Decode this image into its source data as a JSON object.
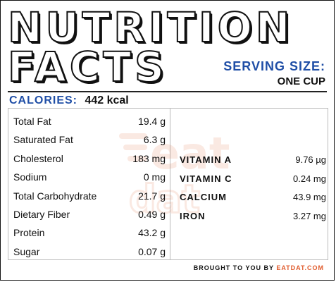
{
  "header": {
    "title_line1": "NUTRITION",
    "title_line2": "FACTS",
    "serving_label": "SERVING SIZE:",
    "serving_value": "ONE CUP"
  },
  "calories": {
    "label": "CALORIES:",
    "value": "442 kcal"
  },
  "nutrients": [
    {
      "name": "Total Fat",
      "value": "19.4 g"
    },
    {
      "name": "Saturated Fat",
      "value": "6.3 g"
    },
    {
      "name": "Cholesterol",
      "value": "183 mg"
    },
    {
      "name": "Sodium",
      "value": "0 mg"
    },
    {
      "name": "Total Carbohydrate",
      "value": "21.7 g"
    },
    {
      "name": "Dietary Fiber",
      "value": "0.49 g"
    },
    {
      "name": "Protein",
      "value": "43.2 g"
    },
    {
      "name": "Sugar",
      "value": "0.07 g"
    }
  ],
  "vitamins": [
    {
      "name": "VITAMIN A",
      "value": "9.76 µg"
    },
    {
      "name": "VITAMIN C",
      "value": "0.24 mg"
    },
    {
      "name": "CALCIUM",
      "value": "43.9 mg"
    },
    {
      "name": "IRON",
      "value": "3.27 mg"
    }
  ],
  "footer": {
    "prefix": "BROUGHT TO YOU BY",
    "brand": "EATDAT.COM"
  },
  "watermark": {
    "text_line1": "eat",
    "text_line2": "dat",
    "color": "#e05a2b"
  },
  "colors": {
    "accent_blue": "#1f4ea6",
    "brand_orange": "#e05a2b"
  }
}
